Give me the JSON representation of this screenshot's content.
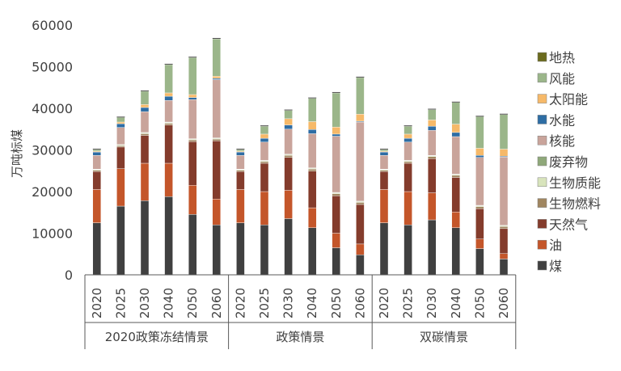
{
  "chart_data": {
    "type": "bar",
    "stacked": true,
    "ylabel": "万吨标煤",
    "ylim": [
      0,
      60000
    ],
    "yticks": [
      0,
      10000,
      20000,
      30000,
      40000,
      50000,
      60000
    ],
    "grid": false,
    "legend_position": "right",
    "groups": [
      {
        "label": "2020政策冻结情景",
        "years": [
          "2020",
          "2025",
          "2030",
          "2040",
          "2050",
          "2060"
        ]
      },
      {
        "label": "政策情景",
        "years": [
          "2020",
          "2025",
          "2030",
          "2040",
          "2050",
          "2060"
        ]
      },
      {
        "label": "双碳情景",
        "years": [
          "2020",
          "2025",
          "2030",
          "2040",
          "2050",
          "2060"
        ]
      }
    ],
    "series": [
      {
        "name": "煤",
        "color": "#404040",
        "values": [
          12500,
          16500,
          17800,
          18800,
          14500,
          12000,
          12500,
          12000,
          13500,
          11300,
          6500,
          4800,
          12500,
          12000,
          13200,
          11300,
          6300,
          3800
        ]
      },
      {
        "name": "油",
        "color": "#C4562A",
        "values": [
          8000,
          9000,
          9000,
          8000,
          7000,
          6200,
          8000,
          8000,
          6800,
          4800,
          3500,
          2600,
          8000,
          8000,
          6500,
          3800,
          2300,
          1300
        ]
      },
      {
        "name": "天然气",
        "color": "#843C2C",
        "values": [
          4300,
          5200,
          6700,
          9200,
          10500,
          14000,
          4300,
          6800,
          7900,
          8800,
          9000,
          9500,
          4300,
          6800,
          8200,
          8300,
          7300,
          6000
        ]
      },
      {
        "name": "生物燃料",
        "color": "#A08660",
        "values": [
          300,
          300,
          400,
          400,
          400,
          400,
          300,
          400,
          500,
          500,
          500,
          500,
          300,
          400,
          500,
          500,
          500,
          500
        ]
      },
      {
        "name": "生物质能",
        "color": "#D8E4BC",
        "values": [
          200,
          200,
          200,
          200,
          200,
          200,
          200,
          200,
          200,
          200,
          200,
          200,
          200,
          200,
          200,
          200,
          200,
          200
        ]
      },
      {
        "name": "废弃物",
        "color": "#8FA87A",
        "values": [
          100,
          100,
          100,
          100,
          100,
          100,
          100,
          100,
          100,
          100,
          100,
          100,
          100,
          100,
          100,
          100,
          100,
          100
        ]
      },
      {
        "name": "核能",
        "color": "#C9A49B",
        "values": [
          3300,
          4100,
          5000,
          5200,
          9400,
          14000,
          3300,
          4400,
          6000,
          8200,
          13500,
          19000,
          3300,
          4400,
          6000,
          9000,
          11500,
          16400
        ]
      },
      {
        "name": "水能",
        "color": "#2E6DA4",
        "values": [
          800,
          900,
          1000,
          1000,
          500,
          300,
          800,
          900,
          1000,
          1000,
          500,
          200,
          800,
          900,
          1000,
          1000,
          500,
          200
        ]
      },
      {
        "name": "太阳能",
        "color": "#F6B969",
        "values": [
          200,
          400,
          700,
          800,
          700,
          500,
          200,
          1000,
          1500,
          1900,
          1700,
          1700,
          200,
          1000,
          1500,
          2000,
          1700,
          1700
        ]
      },
      {
        "name": "风能",
        "color": "#9BB68A",
        "values": [
          400,
          1100,
          3200,
          6800,
          8900,
          9000,
          400,
          1900,
          2000,
          5600,
          8200,
          8800,
          400,
          1900,
          2500,
          5200,
          7600,
          8300
        ]
      },
      {
        "name": "地热",
        "color": "#6B6B1E",
        "values": [
          100,
          100,
          100,
          100,
          100,
          100,
          100,
          100,
          100,
          100,
          100,
          100,
          100,
          100,
          100,
          100,
          100,
          100
        ]
      }
    ]
  }
}
